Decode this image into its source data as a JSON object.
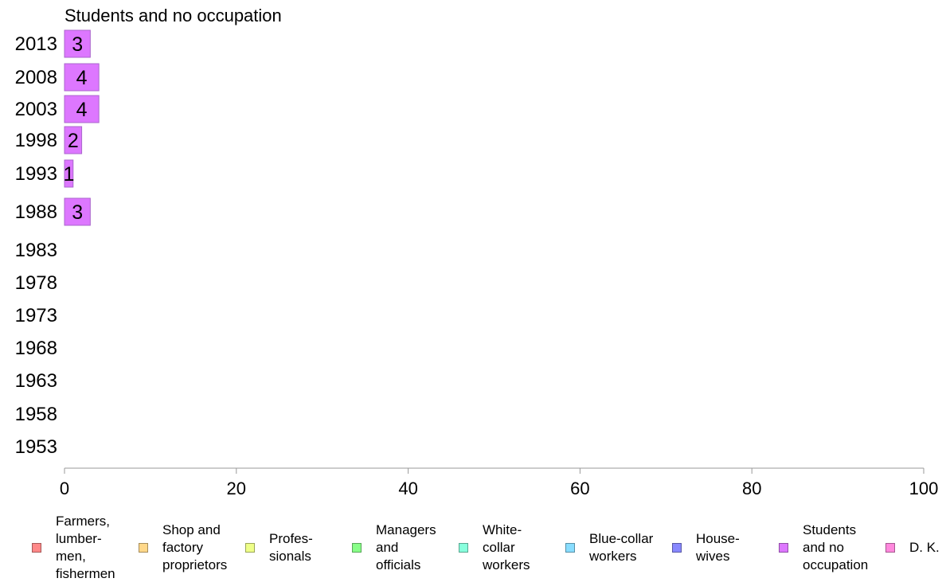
{
  "chart_data": {
    "type": "bar",
    "orientation": "horizontal",
    "title": "Students and no occupation",
    "categories": [
      "2013",
      "2008",
      "2003",
      "1998",
      "1993",
      "1988",
      "1983",
      "1978",
      "1973",
      "1968",
      "1963",
      "1958",
      "1953"
    ],
    "values": [
      3,
      4,
      4,
      2,
      1,
      3,
      null,
      null,
      null,
      null,
      null,
      null,
      null
    ],
    "data_labels": [
      "3",
      "4",
      "4",
      "2",
      "1",
      "3",
      "",
      "",
      "",
      "",
      "",
      "",
      ""
    ],
    "xlim": [
      0,
      100
    ],
    "xticks": [
      0,
      20,
      40,
      60,
      80,
      100
    ],
    "xlabel": "",
    "ylabel": "",
    "bar_color": "#dd77ff",
    "bar_border": "#aa66cc",
    "grid": false,
    "legend_placement": "bottom",
    "legend": [
      {
        "label": "Farmers,\nlumber-\nmen,\nfishermen",
        "color": "#ff8888"
      },
      {
        "label": "Shop and\nfactory\nproprietors",
        "color": "#ffd88a"
      },
      {
        "label": "Profes-\nsionals",
        "color": "#eeff88"
      },
      {
        "label": "Managers\nand\nofficials",
        "color": "#88ff88"
      },
      {
        "label": "White-\ncollar\nworkers",
        "color": "#88ffdd"
      },
      {
        "label": "Blue-collar\nworkers",
        "color": "#88ddff"
      },
      {
        "label": "House-\nwives",
        "color": "#8888ff"
      },
      {
        "label": "Students\nand no\noccupation",
        "color": "#dd77ff"
      },
      {
        "label": "D. K.",
        "color": "#ff88dd"
      }
    ]
  }
}
